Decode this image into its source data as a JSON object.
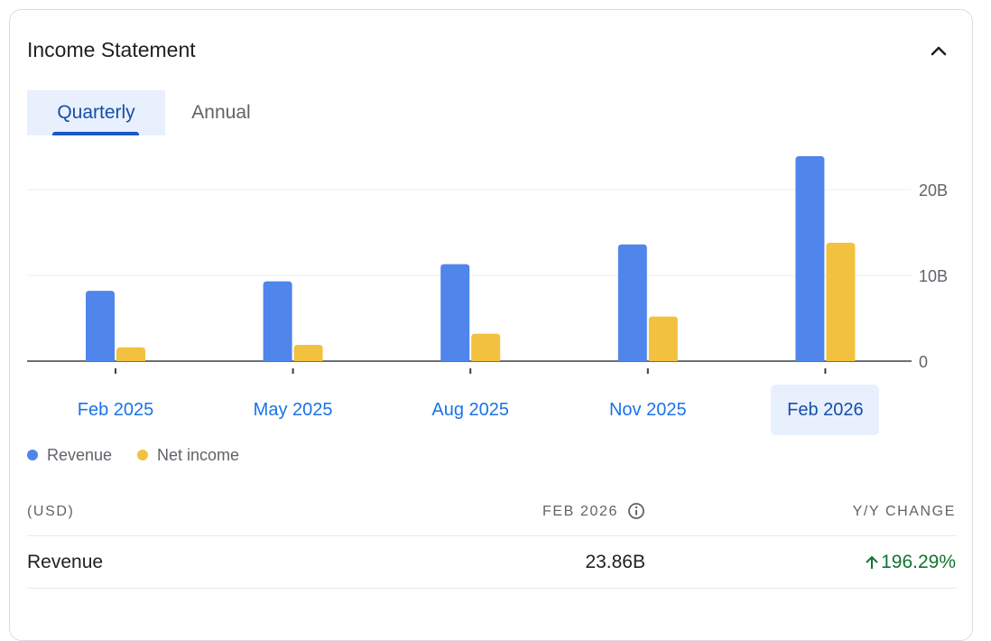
{
  "card": {
    "title": "Income Statement"
  },
  "tabs": [
    {
      "label": "Quarterly",
      "selected": true
    },
    {
      "label": "Annual",
      "selected": false
    }
  ],
  "chart_data": {
    "type": "bar",
    "categories": [
      "Feb 2025",
      "May 2025",
      "Aug 2025",
      "Nov 2025",
      "Feb 2026"
    ],
    "selected_category": "Feb 2026",
    "series": [
      {
        "name": "Revenue",
        "color": "#5085ec",
        "values": [
          8.2,
          9.3,
          11.3,
          13.6,
          23.9
        ]
      },
      {
        "name": "Net income",
        "color": "#f2c13f",
        "values": [
          1.6,
          1.9,
          3.2,
          5.2,
          13.8
        ]
      }
    ],
    "y_ticks": [
      {
        "value": 0,
        "label": "0"
      },
      {
        "value": 10,
        "label": "10B"
      },
      {
        "value": 20,
        "label": "20B"
      }
    ],
    "ylim": [
      0,
      25
    ],
    "units": "billions USD",
    "grid": true,
    "legend_position": "bottom-left"
  },
  "table": {
    "currency_label": "(USD)",
    "period_header": "FEB 2026",
    "change_header": "Y/Y CHANGE",
    "rows": [
      {
        "label": "Revenue",
        "value": "23.86B",
        "change": "196.29%",
        "change_direction": "up",
        "change_color": "#137333"
      }
    ]
  }
}
